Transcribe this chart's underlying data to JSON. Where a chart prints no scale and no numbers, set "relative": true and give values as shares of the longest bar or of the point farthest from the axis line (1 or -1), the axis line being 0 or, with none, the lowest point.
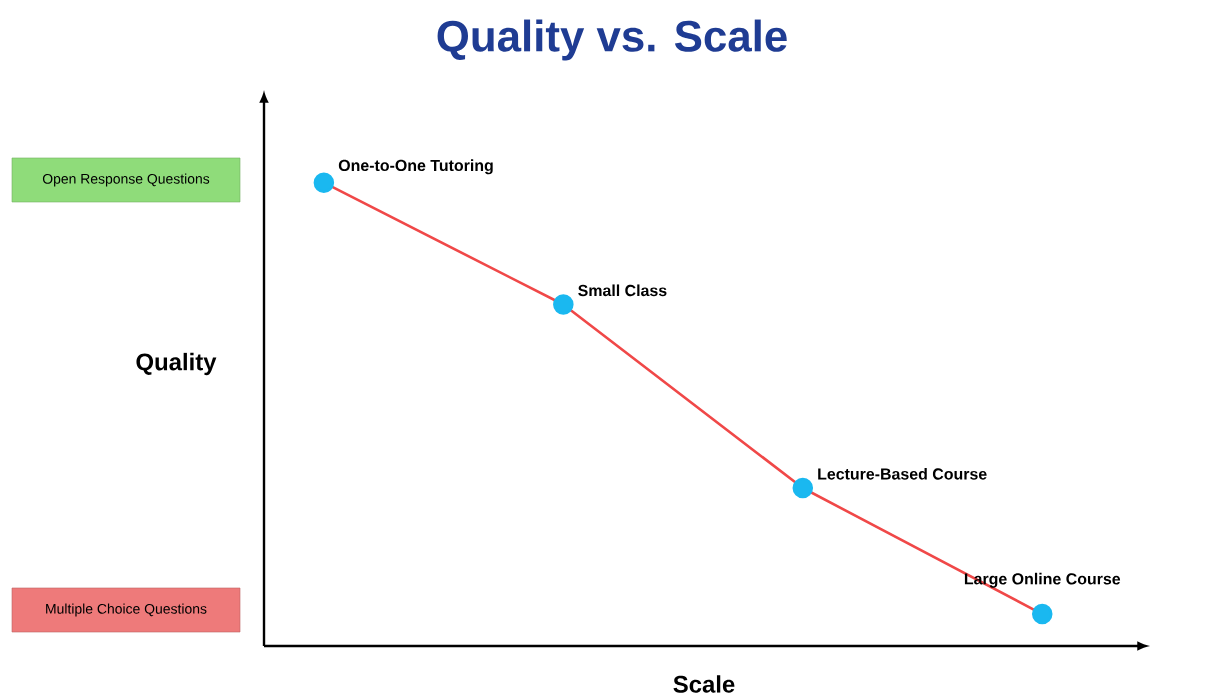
{
  "chart_data": {
    "type": "line",
    "title": "Quality vs. Scale",
    "xlabel": "Scale",
    "ylabel": "Quality",
    "relative": true,
    "categories": [
      null,
      null,
      null,
      null
    ],
    "series": [
      {
        "color": "#f04848",
        "marker": "circle",
        "values": [
          1.0,
          0.737,
          0.341,
          0.069
        ]
      }
    ],
    "annotations": [
      "One-to-One Tutoring",
      "Small Class",
      "Lecture-Based Course",
      "Large Online Course",
      "Open Response Questions",
      "Multiple Choice Questions"
    ]
  }
}
